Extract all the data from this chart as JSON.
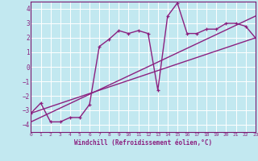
{
  "xlabel": "Windchill (Refroidissement éolien,°C)",
  "bg_color": "#c2e8f0",
  "grid_color": "#aad4dc",
  "line_color": "#8b2080",
  "xlim": [
    0,
    23
  ],
  "ylim": [
    -4.5,
    4.5
  ],
  "xticks": [
    0,
    1,
    2,
    3,
    4,
    5,
    6,
    7,
    8,
    9,
    10,
    11,
    12,
    13,
    14,
    15,
    16,
    17,
    18,
    19,
    20,
    21,
    22,
    23
  ],
  "yticks": [
    -4,
    -3,
    -2,
    -1,
    0,
    1,
    2,
    3,
    4
  ],
  "curve1_x": [
    0,
    1,
    2,
    3,
    4,
    5,
    6,
    7,
    8,
    9,
    10,
    11,
    12,
    13,
    14,
    15,
    16,
    17,
    18,
    19,
    20,
    21,
    22,
    23
  ],
  "curve1_y": [
    -3.2,
    -2.5,
    -3.8,
    -3.8,
    -3.5,
    -3.5,
    -2.6,
    1.4,
    1.9,
    2.5,
    2.3,
    2.5,
    2.3,
    -1.6,
    3.5,
    4.4,
    2.3,
    2.3,
    2.6,
    2.6,
    3.0,
    3.0,
    2.8,
    2.0
  ],
  "curve2_x": [
    0,
    23
  ],
  "curve2_y": [
    -3.2,
    2.0
  ],
  "curve3_x": [
    0,
    23
  ],
  "curve3_y": [
    -3.8,
    3.5
  ],
  "spine_color": "#7a1870"
}
